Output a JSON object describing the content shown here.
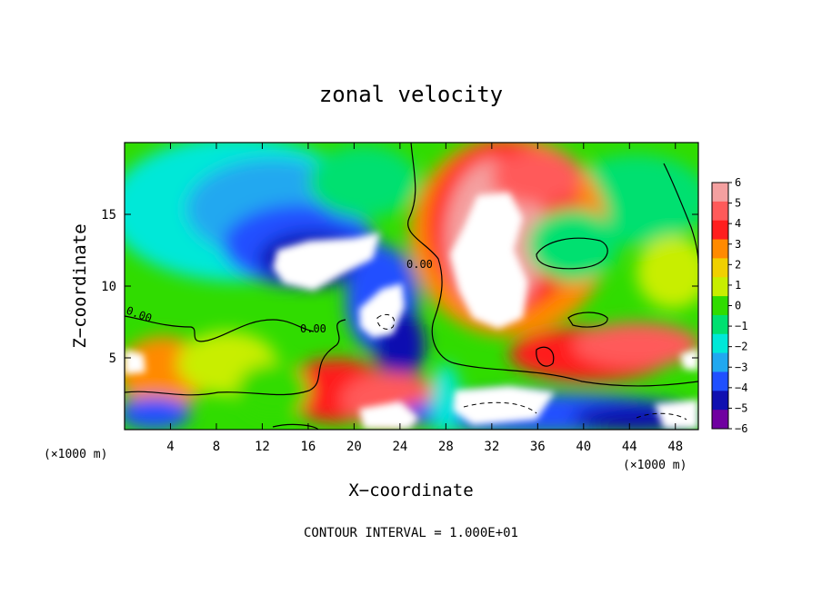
{
  "chart_data": {
    "type": "heatmap",
    "title": "zonal velocity",
    "xlabel": "X−coordinate",
    "ylabel": "Z−coordinate",
    "x_unit": "(×1000 m)",
    "y_unit": "(×1000 m)",
    "xlim": [
      0,
      50
    ],
    "ylim": [
      0,
      20
    ],
    "x_ticks": [
      4,
      8,
      12,
      16,
      20,
      24,
      28,
      32,
      36,
      40,
      44,
      48
    ],
    "y_ticks": [
      5,
      10,
      15
    ],
    "colorbar": {
      "ticks": [
        "6",
        "5",
        "4",
        "3",
        "2",
        "1",
        "0",
        "−1",
        "−2",
        "−3",
        "−4",
        "−5",
        "−6"
      ],
      "colors": [
        "#f4a0a0",
        "#ff5a5a",
        "#ff1e1e",
        "#ff8a00",
        "#f0d000",
        "#c8ee00",
        "#30dc00",
        "#00e070",
        "#00e8d8",
        "#20a8f0",
        "#2050ff",
        "#1010b0",
        "#7000a0"
      ],
      "range": [
        -6,
        6
      ]
    },
    "contour_labels": [
      "0.00",
      "0.00",
      "0.00"
    ],
    "annotation": "CONTOUR INTERVAL = 1.000E+01"
  }
}
